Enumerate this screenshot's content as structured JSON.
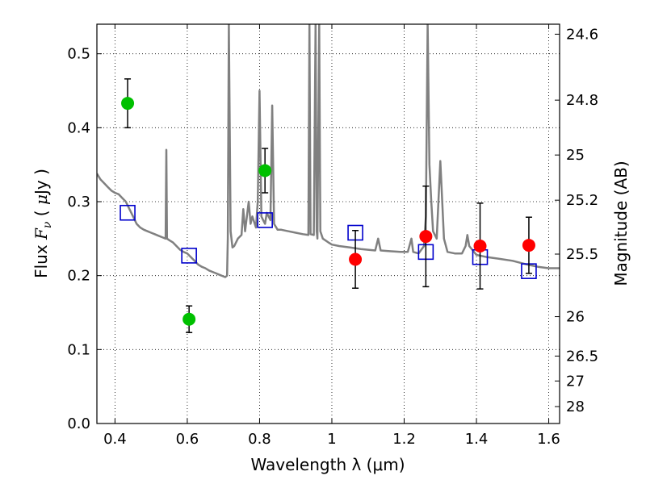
{
  "chart_data": {
    "type": "scatter",
    "xlabel": "Wavelength  λ (μm)",
    "ylabel": "Flux  F_ν  ( μJy )",
    "y2label": "Magnitude (AB)",
    "xlim": [
      0.35,
      1.63
    ],
    "ylim": [
      0.0,
      0.54
    ],
    "grid": true,
    "x_ticks": [
      0.4,
      0.6,
      0.8,
      1.0,
      1.2,
      1.4,
      1.6
    ],
    "x_tick_labels": [
      "0.4",
      "0.6",
      "0.8",
      "1",
      "1.2",
      "1.4",
      "1.6"
    ],
    "y_ticks": [
      0.0,
      0.1,
      0.2,
      0.3,
      0.4,
      0.5
    ],
    "y_tick_labels": [
      "0.0",
      "0.1",
      "0.2",
      "0.3",
      "0.4",
      "0.5"
    ],
    "y2_ticks": [
      {
        "flux": 0.5265,
        "label": "24.6"
      },
      {
        "flux": 0.4373,
        "label": "24.8"
      },
      {
        "flux": 0.3631,
        "label": "25"
      },
      {
        "flux": 0.302,
        "label": "25.2"
      },
      {
        "flux": 0.2291,
        "label": "25.5"
      },
      {
        "flux": 0.1445,
        "label": "26"
      },
      {
        "flux": 0.0912,
        "label": "26.5"
      },
      {
        "flux": 0.0575,
        "label": "27"
      },
      {
        "flux": 0.0229,
        "label": "28"
      }
    ],
    "series": [
      {
        "kind": "model_spectrum",
        "color": "#808080",
        "points": [
          [
            0.35,
            0.338
          ],
          [
            0.36,
            0.33
          ],
          [
            0.37,
            0.325
          ],
          [
            0.38,
            0.32
          ],
          [
            0.39,
            0.315
          ],
          [
            0.4,
            0.312
          ],
          [
            0.41,
            0.31
          ],
          [
            0.42,
            0.305
          ],
          [
            0.43,
            0.3
          ],
          [
            0.44,
            0.29
          ],
          [
            0.45,
            0.28
          ],
          [
            0.46,
            0.27
          ],
          [
            0.47,
            0.265
          ],
          [
            0.48,
            0.262
          ],
          [
            0.49,
            0.26
          ],
          [
            0.5,
            0.258
          ],
          [
            0.51,
            0.256
          ],
          [
            0.52,
            0.254
          ],
          [
            0.53,
            0.252
          ],
          [
            0.54,
            0.25
          ],
          [
            0.542,
            0.37
          ],
          [
            0.544,
            0.25
          ],
          [
            0.55,
            0.248
          ],
          [
            0.56,
            0.245
          ],
          [
            0.57,
            0.24
          ],
          [
            0.58,
            0.235
          ],
          [
            0.59,
            0.232
          ],
          [
            0.6,
            0.23
          ],
          [
            0.61,
            0.225
          ],
          [
            0.62,
            0.22
          ],
          [
            0.63,
            0.215
          ],
          [
            0.64,
            0.212
          ],
          [
            0.65,
            0.21
          ],
          [
            0.66,
            0.207
          ],
          [
            0.67,
            0.205
          ],
          [
            0.68,
            0.203
          ],
          [
            0.69,
            0.201
          ],
          [
            0.7,
            0.199
          ],
          [
            0.705,
            0.198
          ],
          [
            0.71,
            0.2
          ],
          [
            0.712,
            0.25
          ],
          [
            0.715,
            0.54
          ],
          [
            0.72,
            0.26
          ],
          [
            0.725,
            0.238
          ],
          [
            0.73,
            0.24
          ],
          [
            0.74,
            0.25
          ],
          [
            0.75,
            0.255
          ],
          [
            0.755,
            0.29
          ],
          [
            0.76,
            0.26
          ],
          [
            0.77,
            0.3
          ],
          [
            0.775,
            0.27
          ],
          [
            0.78,
            0.28
          ],
          [
            0.79,
            0.265
          ],
          [
            0.795,
            0.3
          ],
          [
            0.8,
            0.45
          ],
          [
            0.805,
            0.28
          ],
          [
            0.81,
            0.275
          ],
          [
            0.815,
            0.27
          ],
          [
            0.82,
            0.285
          ],
          [
            0.83,
            0.275
          ],
          [
            0.835,
            0.43
          ],
          [
            0.84,
            0.27
          ],
          [
            0.85,
            0.262
          ],
          [
            0.86,
            0.262
          ],
          [
            0.88,
            0.26
          ],
          [
            0.9,
            0.258
          ],
          [
            0.92,
            0.256
          ],
          [
            0.935,
            0.255
          ],
          [
            0.938,
            0.54
          ],
          [
            0.941,
            0.256
          ],
          [
            0.95,
            0.255
          ],
          [
            0.955,
            0.54
          ],
          [
            0.958,
            0.26
          ],
          [
            0.96,
            0.25
          ],
          [
            0.965,
            0.54
          ],
          [
            0.968,
            0.26
          ],
          [
            0.975,
            0.25
          ],
          [
            0.99,
            0.245
          ],
          [
            1.0,
            0.242
          ],
          [
            1.02,
            0.24
          ],
          [
            1.05,
            0.238
          ],
          [
            1.08,
            0.236
          ],
          [
            1.1,
            0.235
          ],
          [
            1.12,
            0.234
          ],
          [
            1.128,
            0.25
          ],
          [
            1.135,
            0.234
          ],
          [
            1.16,
            0.233
          ],
          [
            1.19,
            0.232
          ],
          [
            1.21,
            0.232
          ],
          [
            1.22,
            0.25
          ],
          [
            1.225,
            0.232
          ],
          [
            1.24,
            0.23
          ],
          [
            1.255,
            0.24
          ],
          [
            1.26,
            0.28
          ],
          [
            1.265,
            0.54
          ],
          [
            1.27,
            0.35
          ],
          [
            1.275,
            0.3
          ],
          [
            1.28,
            0.26
          ],
          [
            1.29,
            0.25
          ],
          [
            1.3,
            0.355
          ],
          [
            1.31,
            0.25
          ],
          [
            1.32,
            0.232
          ],
          [
            1.34,
            0.23
          ],
          [
            1.36,
            0.23
          ],
          [
            1.37,
            0.24
          ],
          [
            1.375,
            0.255
          ],
          [
            1.38,
            0.24
          ],
          [
            1.4,
            0.228
          ],
          [
            1.43,
            0.225
          ],
          [
            1.46,
            0.223
          ],
          [
            1.5,
            0.22
          ],
          [
            1.54,
            0.215
          ],
          [
            1.57,
            0.212
          ],
          [
            1.6,
            0.21
          ],
          [
            1.63,
            0.21
          ]
        ]
      },
      {
        "kind": "model_bandpass",
        "marker": "open-square",
        "color": "#0000cc",
        "x": [
          0.435,
          0.605,
          0.815,
          1.065,
          1.26,
          1.41,
          1.545
        ],
        "y": [
          0.285,
          0.227,
          0.275,
          0.258,
          0.232,
          0.225,
          0.206
        ]
      },
      {
        "kind": "observed",
        "marker": "filled-circle",
        "color": "#00c000",
        "x": [
          0.435,
          0.605,
          0.815
        ],
        "y": [
          0.433,
          0.141,
          0.342
        ],
        "yerr": [
          0.033,
          0.018,
          0.03
        ]
      },
      {
        "kind": "observed",
        "marker": "filled-circle",
        "color": "#ff0000",
        "x": [
          1.065,
          1.26,
          1.41,
          1.545
        ],
        "y": [
          0.222,
          0.253,
          0.24,
          0.241
        ],
        "yerr": [
          0.039,
          0.068,
          0.058,
          0.038
        ]
      }
    ]
  }
}
